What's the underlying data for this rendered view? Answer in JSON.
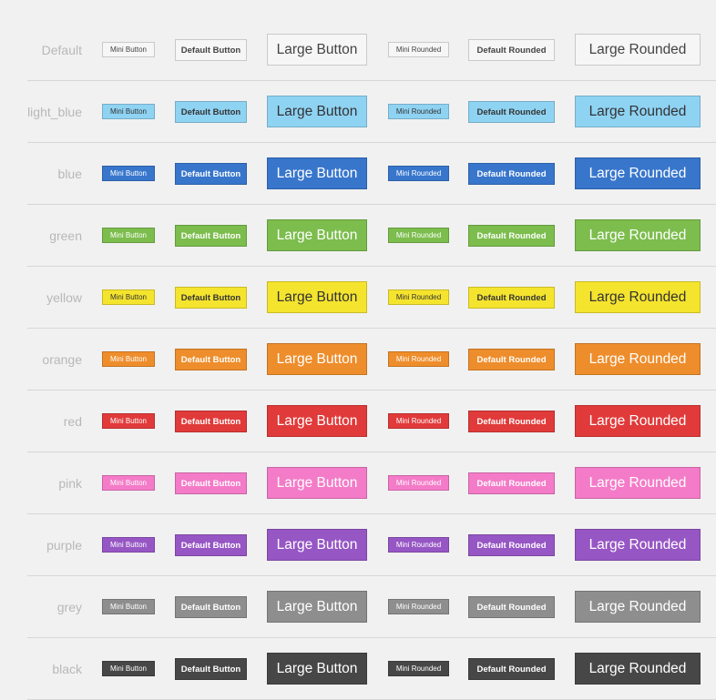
{
  "labels": {
    "mini": "Mini Button",
    "default": "Default Button",
    "large": "Large Button",
    "mini_rounded": "Mini Rounded",
    "default_rounded": "Default Rounded",
    "large_rounded": "Large Rounded"
  },
  "rows": [
    {
      "name": "Default",
      "bg": "#f6f6f6",
      "fg": "#444444"
    },
    {
      "name": "light_blue",
      "bg": "#8fd3f3",
      "fg": "#333333"
    },
    {
      "name": "blue",
      "bg": "#3876cc",
      "fg": "#ffffff"
    },
    {
      "name": "green",
      "bg": "#7cbd4d",
      "fg": "#ffffff"
    },
    {
      "name": "yellow",
      "bg": "#f5e42e",
      "fg": "#333333"
    },
    {
      "name": "orange",
      "bg": "#ee8d2b",
      "fg": "#ffffff"
    },
    {
      "name": "red",
      "bg": "#e13a3a",
      "fg": "#ffffff"
    },
    {
      "name": "pink",
      "bg": "#f47bc8",
      "fg": "#ffffff"
    },
    {
      "name": "purple",
      "bg": "#9656c4",
      "fg": "#ffffff"
    },
    {
      "name": "grey",
      "bg": "#8e8e8e",
      "fg": "#ffffff"
    },
    {
      "name": "black",
      "bg": "#474747",
      "fg": "#ffffff"
    }
  ]
}
